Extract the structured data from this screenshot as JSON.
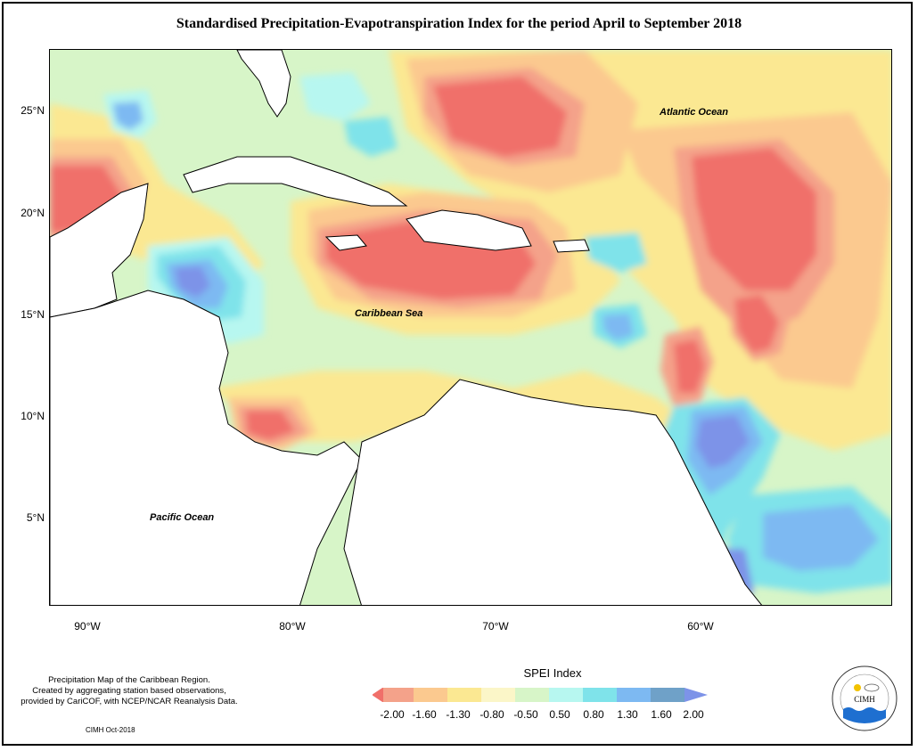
{
  "title": "Standardised Precipitation-Evapotranspiration Index for the period April to September 2018",
  "map": {
    "y_ticks": [
      "25°N",
      "20°N",
      "15°N",
      "10°N",
      "5°N"
    ],
    "x_ticks": [
      "90°W",
      "80°W",
      "70°W",
      "60°W"
    ],
    "labels": {
      "atlantic": "Atlantic Ocean",
      "caribbean": "Caribbean Sea",
      "pacific": "Pacific Ocean"
    }
  },
  "credit": {
    "line1": "Precipitation Map of the Caribbean Region.",
    "line2": "Created by aggregating station based observations,",
    "line3": "provided by CariCOF, with NCEP/NCAR Reanalysis Data.",
    "small": "CIMH Oct-2018"
  },
  "legend": {
    "title": "SPEI Index",
    "values": [
      "-2.00",
      "-1.60",
      "-1.30",
      "-0.80",
      "-0.50",
      "0.50",
      "0.80",
      "1.30",
      "1.60",
      "2.00"
    ],
    "colors": [
      "#f0706a",
      "#f4a28a",
      "#fbc98f",
      "#fbe892",
      "#fbf6c8",
      "#d7f5c8",
      "#b7f7f0",
      "#7fe3ea",
      "#7db9f2",
      "#6fa1c8",
      "#7d93e8"
    ]
  },
  "logo": {
    "text": "CIMH"
  }
}
